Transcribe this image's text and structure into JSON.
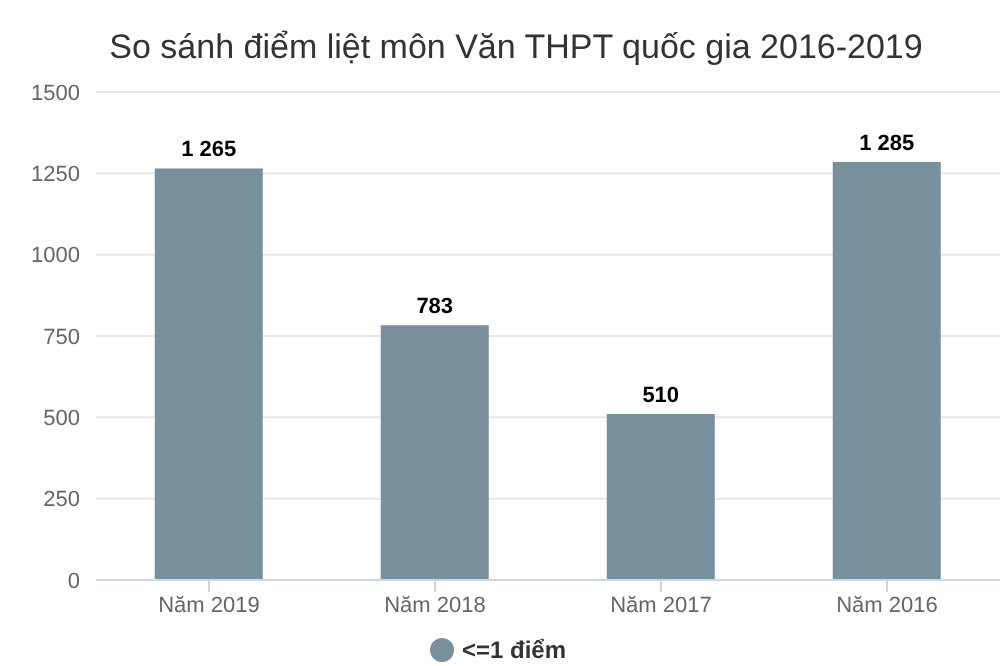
{
  "chart_data": {
    "type": "bar",
    "title": "So sánh điểm liệt môn Văn THPT quốc gia 2016-2019",
    "categories": [
      "Năm 2019",
      "Năm 2018",
      "Năm 2017",
      "Năm 2016"
    ],
    "series": [
      {
        "name": "<=1 điểm",
        "color": "#78909c",
        "values": [
          1265,
          783,
          510,
          1285
        ],
        "value_labels": [
          "1 265",
          "783",
          "510",
          "1 285"
        ]
      }
    ],
    "ylim": [
      0,
      1500
    ],
    "yticks": [
      0,
      250,
      500,
      750,
      1000,
      1250,
      1500
    ],
    "grid": "y",
    "legend": "bottom"
  }
}
